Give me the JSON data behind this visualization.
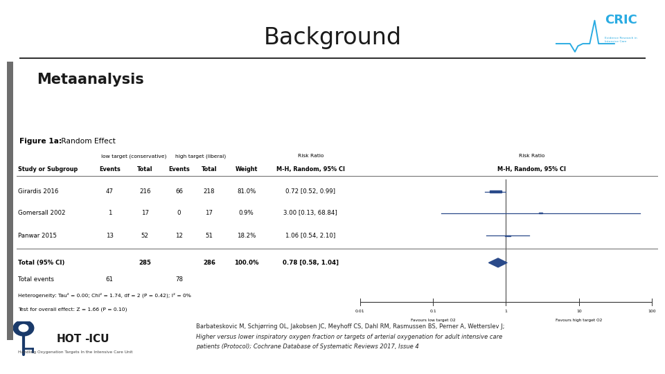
{
  "title": "Background",
  "title_fontsize": 24,
  "title_color": "#1a1a1a",
  "section_label": "Metaanalysis",
  "section_fontsize": 15,
  "background_color": "#ffffff",
  "figure_label_bold": "Figure 1a:",
  "figure_label_normal": " Random Effect",
  "studies": [
    {
      "name": "Girardis 2016",
      "ev1": 47,
      "tot1": 216,
      "ev2": 66,
      "tot2": 218,
      "weight": "81.0%",
      "rr": "0.72 [0.52, 0.99]",
      "log_rr": -0.1427,
      "log_lo": -0.284,
      "log_hi": -0.00435
    },
    {
      "name": "Gomersall 2002",
      "ev1": 1,
      "tot1": 17,
      "ev2": 0,
      "tot2": 17,
      "weight": "0.9%",
      "rr": "3.00 [0.13, 68.84]",
      "log_rr": 0.4771,
      "log_lo": -0.8861,
      "log_hi": 1.8376
    },
    {
      "name": "Panwar 2015",
      "ev1": 13,
      "tot1": 52,
      "ev2": 12,
      "tot2": 51,
      "weight": "18.2%",
      "rr": "1.06 [0.54, 2.10]",
      "log_rr": 0.0253,
      "log_lo": -0.2676,
      "log_hi": 0.3223
    }
  ],
  "total_label": "Total (95% CI)",
  "total_tot1": 285,
  "total_tot2": 286,
  "total_weight": "100.0%",
  "total_rr": "0.78 [0.58, 1.04]",
  "total_log_rr": -0.1079,
  "total_log_lo": -0.2366,
  "total_log_hi": 0.01695,
  "total_ev1": 61,
  "total_ev2": 78,
  "heterogeneity": "Heterogeneity: Tau² = 0.00; Chi² = 1.74, df = 2 (P = 0.42); I² = 0%",
  "overall_effect": "Test for overall effect: Z = 1.66 (P = 0.10)",
  "x_ticks_vals": [
    0.01,
    0.1,
    1,
    10,
    100
  ],
  "x_ticks_labels": [
    "0.01",
    "0.1",
    "1",
    "10",
    "100"
  ],
  "x_label_left": "Favours low target O2",
  "x_label_right": "Favours high target O2",
  "box_color": "#2a4a8a",
  "diamond_color": "#2a4a8a",
  "ci_line_color": "#2a4a8a",
  "ref_line_color": "#333333",
  "axis_color": "#333333",
  "citation_line1": "Barbateskovic M, Schjørring OL, Jakobsen JC, Meyhoff CS, Dahl RM, Rasmussen BS, Perner A, Wetterslev J;",
  "citation_line2": "Higher versus lower inspiratory oxygen fraction or targets of arterial oxygenation for adult intensive care",
  "citation_line3": "patients (Protocol); Cochrane Database of Systematic Reviews 2017, Issue 4",
  "cric_color": "#29abe2",
  "sidebar_color": "#6d6d6d",
  "border_color": "#aaaaaa",
  "forest_box_bg": "#f5f5f5",
  "forest_box_border": "#888888"
}
